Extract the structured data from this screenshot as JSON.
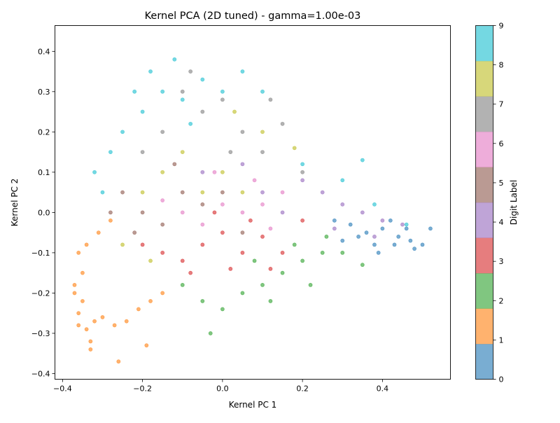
{
  "chart_data": {
    "type": "scatter",
    "title": "Kernel PCA (2D tuned) - gamma=1.00e-03",
    "xlabel": "Kernel PC 1",
    "ylabel": "Kernel PC 2",
    "xlim": [
      -0.419,
      0.57
    ],
    "ylim": [
      -0.414,
      0.464
    ],
    "xticks": [
      -0.4,
      -0.2,
      0.0,
      0.2,
      0.4
    ],
    "xtick_labels": [
      "−0.4",
      "−0.2",
      "0.0",
      "0.2",
      "0.4"
    ],
    "yticks": [
      -0.4,
      -0.3,
      -0.2,
      -0.1,
      0.0,
      0.1,
      0.2,
      0.3,
      0.4
    ],
    "ytick_labels": [
      "−0.4",
      "−0.3",
      "−0.2",
      "−0.1",
      "0.0",
      "0.1",
      "0.2",
      "0.3",
      "0.4"
    ],
    "grid": false,
    "marker_alpha": 0.6,
    "colormap": "tab10",
    "colors": [
      "#1f77b4",
      "#ff7f0e",
      "#2ca02c",
      "#d62728",
      "#9467bd",
      "#8c564b",
      "#e377c2",
      "#7f7f7f",
      "#bcbd22",
      "#17becf"
    ],
    "colorbar": {
      "label": "Digit Label",
      "range": [
        0,
        9
      ],
      "ticks": [
        0,
        1,
        2,
        3,
        4,
        5,
        6,
        7,
        8,
        9
      ],
      "tick_labels": [
        "0",
        "1",
        "2",
        "3",
        "4",
        "5",
        "6",
        "7",
        "8",
        "9"
      ]
    },
    "points": [
      [
        0.32,
        -0.03,
        0
      ],
      [
        0.36,
        -0.05,
        0
      ],
      [
        0.4,
        -0.04,
        0
      ],
      [
        0.44,
        -0.06,
        0
      ],
      [
        0.47,
        -0.07,
        0
      ],
      [
        0.5,
        -0.08,
        0
      ],
      [
        0.42,
        -0.02,
        0
      ],
      [
        0.38,
        -0.08,
        0
      ],
      [
        0.34,
        -0.06,
        0
      ],
      [
        0.46,
        -0.04,
        0
      ],
      [
        0.28,
        -0.02,
        0
      ],
      [
        0.52,
        -0.04,
        0
      ],
      [
        0.39,
        -0.1,
        0
      ],
      [
        0.3,
        -0.07,
        0
      ],
      [
        0.48,
        -0.09,
        0
      ],
      [
        0.43,
        -0.08,
        0
      ],
      [
        -0.36,
        -0.1,
        1
      ],
      [
        -0.35,
        -0.15,
        1
      ],
      [
        -0.37,
        -0.2,
        1
      ],
      [
        -0.36,
        -0.25,
        1
      ],
      [
        -0.34,
        -0.29,
        1
      ],
      [
        -0.33,
        -0.32,
        1
      ],
      [
        -0.35,
        -0.22,
        1
      ],
      [
        -0.37,
        -0.18,
        1
      ],
      [
        -0.34,
        -0.08,
        1
      ],
      [
        -0.32,
        -0.27,
        1
      ],
      [
        -0.3,
        -0.26,
        1
      ],
      [
        -0.27,
        -0.28,
        1
      ],
      [
        -0.24,
        -0.27,
        1
      ],
      [
        -0.21,
        -0.24,
        1
      ],
      [
        -0.18,
        -0.22,
        1
      ],
      [
        -0.31,
        -0.05,
        1
      ],
      [
        -0.28,
        -0.02,
        1
      ],
      [
        -0.33,
        -0.34,
        1
      ],
      [
        -0.26,
        -0.37,
        1
      ],
      [
        -0.36,
        -0.28,
        1
      ],
      [
        -0.15,
        -0.2,
        1
      ],
      [
        -0.19,
        -0.33,
        1
      ],
      [
        0.05,
        -0.2,
        2
      ],
      [
        0.1,
        -0.18,
        2
      ],
      [
        0.15,
        -0.15,
        2
      ],
      [
        0.2,
        -0.12,
        2
      ],
      [
        0.25,
        -0.1,
        2
      ],
      [
        0.3,
        -0.1,
        2
      ],
      [
        0.0,
        -0.24,
        2
      ],
      [
        -0.05,
        -0.22,
        2
      ],
      [
        0.12,
        -0.22,
        2
      ],
      [
        0.22,
        -0.18,
        2
      ],
      [
        0.35,
        -0.13,
        2
      ],
      [
        0.18,
        -0.08,
        2
      ],
      [
        -0.1,
        -0.18,
        2
      ],
      [
        -0.03,
        -0.3,
        2
      ],
      [
        0.08,
        -0.12,
        2
      ],
      [
        0.26,
        -0.06,
        2
      ],
      [
        -0.05,
        -0.08,
        3
      ],
      [
        0.0,
        -0.05,
        3
      ],
      [
        0.05,
        -0.1,
        3
      ],
      [
        0.1,
        -0.06,
        3
      ],
      [
        0.15,
        -0.1,
        3
      ],
      [
        -0.1,
        -0.12,
        3
      ],
      [
        -0.15,
        -0.1,
        3
      ],
      [
        0.2,
        -0.02,
        3
      ],
      [
        0.02,
        -0.14,
        3
      ],
      [
        -0.02,
        0.0,
        3
      ],
      [
        0.12,
        -0.14,
        3
      ],
      [
        -0.2,
        -0.08,
        3
      ],
      [
        0.07,
        -0.02,
        3
      ],
      [
        -0.08,
        -0.15,
        3
      ],
      [
        0.3,
        0.02,
        4
      ],
      [
        0.35,
        0.0,
        4
      ],
      [
        0.4,
        -0.02,
        4
      ],
      [
        0.25,
        0.05,
        4
      ],
      [
        0.2,
        0.08,
        4
      ],
      [
        0.1,
        0.05,
        4
      ],
      [
        0.45,
        -0.03,
        4
      ],
      [
        0.15,
        0.0,
        4
      ],
      [
        -0.05,
        0.1,
        4
      ],
      [
        0.05,
        0.12,
        4
      ],
      [
        0.28,
        -0.04,
        4
      ],
      [
        0.38,
        -0.06,
        4
      ],
      [
        -0.25,
        0.05,
        5
      ],
      [
        -0.2,
        0.0,
        5
      ],
      [
        -0.15,
        -0.03,
        5
      ],
      [
        -0.1,
        0.05,
        5
      ],
      [
        -0.05,
        0.02,
        5
      ],
      [
        -0.22,
        -0.05,
        5
      ],
      [
        -0.28,
        0.0,
        5
      ],
      [
        0.0,
        0.05,
        5
      ],
      [
        -0.12,
        0.12,
        5
      ],
      [
        0.05,
        -0.05,
        5
      ],
      [
        -0.1,
        0.0,
        6
      ],
      [
        -0.05,
        -0.03,
        6
      ],
      [
        0.0,
        0.02,
        6
      ],
      [
        0.05,
        0.0,
        6
      ],
      [
        0.1,
        0.02,
        6
      ],
      [
        -0.15,
        0.03,
        6
      ],
      [
        0.08,
        0.08,
        6
      ],
      [
        0.15,
        0.05,
        6
      ],
      [
        -0.02,
        0.1,
        6
      ],
      [
        0.12,
        -0.04,
        6
      ],
      [
        -0.1,
        0.3,
        7
      ],
      [
        -0.05,
        0.25,
        7
      ],
      [
        0.0,
        0.28,
        7
      ],
      [
        0.05,
        0.2,
        7
      ],
      [
        0.1,
        0.15,
        7
      ],
      [
        -0.15,
        0.2,
        7
      ],
      [
        0.15,
        0.22,
        7
      ],
      [
        0.2,
        0.1,
        7
      ],
      [
        -0.08,
        0.35,
        7
      ],
      [
        0.02,
        0.15,
        7
      ],
      [
        -0.2,
        0.15,
        7
      ],
      [
        0.12,
        0.28,
        7
      ],
      [
        -0.2,
        0.05,
        8
      ],
      [
        -0.15,
        0.1,
        8
      ],
      [
        -0.1,
        0.15,
        8
      ],
      [
        -0.05,
        0.05,
        8
      ],
      [
        0.0,
        0.1,
        8
      ],
      [
        0.05,
        0.05,
        8
      ],
      [
        -0.25,
        -0.08,
        8
      ],
      [
        0.1,
        0.2,
        8
      ],
      [
        -0.18,
        -0.12,
        8
      ],
      [
        0.03,
        0.25,
        8
      ],
      [
        0.18,
        0.16,
        8
      ],
      [
        -0.25,
        0.2,
        9
      ],
      [
        -0.2,
        0.25,
        9
      ],
      [
        -0.15,
        0.3,
        9
      ],
      [
        -0.1,
        0.28,
        9
      ],
      [
        -0.05,
        0.33,
        9
      ],
      [
        0.0,
        0.3,
        9
      ],
      [
        0.05,
        0.35,
        9
      ],
      [
        -0.28,
        0.15,
        9
      ],
      [
        -0.22,
        0.3,
        9
      ],
      [
        -0.12,
        0.38,
        9
      ],
      [
        -0.08,
        0.22,
        9
      ],
      [
        0.1,
        0.3,
        9
      ],
      [
        0.2,
        0.12,
        9
      ],
      [
        0.3,
        0.08,
        9
      ],
      [
        0.38,
        0.02,
        9
      ],
      [
        0.46,
        -0.03,
        9
      ],
      [
        -0.3,
        0.05,
        9
      ],
      [
        -0.32,
        0.1,
        9
      ],
      [
        0.35,
        0.13,
        9
      ],
      [
        -0.18,
        0.35,
        9
      ]
    ]
  }
}
